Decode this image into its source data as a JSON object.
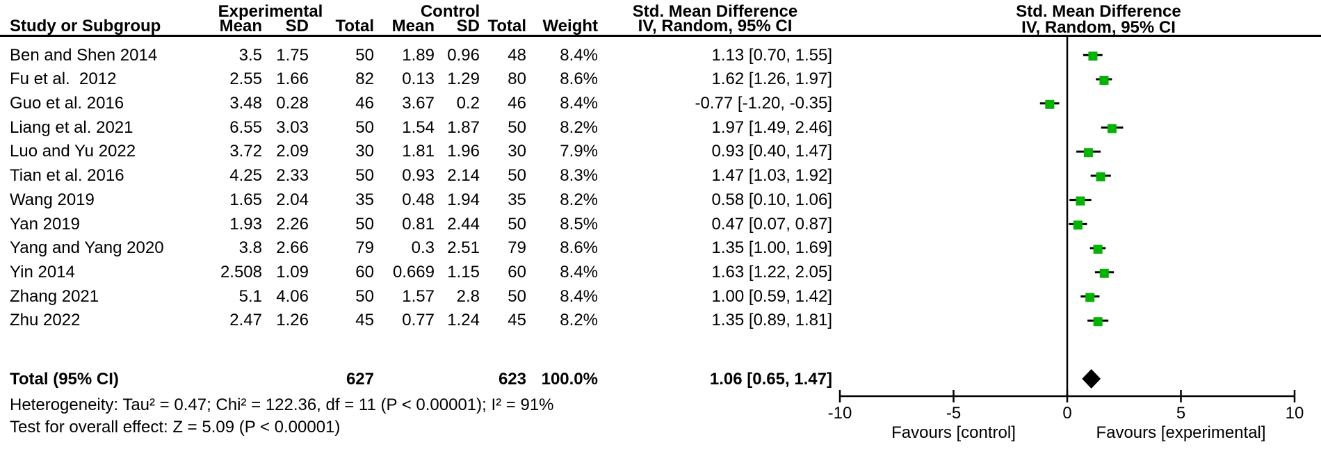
{
  "header": {
    "experimental": "Experimental",
    "control": "Control",
    "smd_left": "Std. Mean Difference",
    "smd_right": "Std. Mean Difference",
    "study": "Study or Subgroup",
    "mean_e": "Mean",
    "sd_e": "SD",
    "total_e": "Total",
    "mean_c": "Mean",
    "sd_c": "SD",
    "total_c": "Total",
    "weight": "Weight",
    "iv_left": "IV, Random, 95% CI",
    "iv_right": "IV, Random, 95% CI"
  },
  "chart_data": {
    "type": "scatter",
    "subtype": "forest-plot",
    "effect_measure": "Std. Mean Difference, IV, Random, 95% CI",
    "xlim": [
      -10,
      10
    ],
    "x_tick_values": [
      -10,
      -5,
      0,
      5,
      10
    ],
    "x_tick_labels": [
      "-10",
      "-5",
      "0",
      "5",
      "10"
    ],
    "favours_left": "Favours [control]",
    "favours_right": "Favours [experimental]",
    "marker_color": "#00B400",
    "line_color": "#000000",
    "studies": [
      {
        "name": "Ben and Shen 2014",
        "mean_e": "3.5",
        "sd_e": "1.75",
        "total_e": "50",
        "mean_c": "1.89",
        "sd_c": "0.96",
        "total_c": "48",
        "weight": "8.4%",
        "ci_text": "1.13 [0.70, 1.55]",
        "est": 1.13,
        "lo": 0.7,
        "hi": 1.55
      },
      {
        "name": "Fu et al.  2012",
        "mean_e": "2.55",
        "sd_e": "1.66",
        "total_e": "82",
        "mean_c": "0.13",
        "sd_c": "1.29",
        "total_c": "80",
        "weight": "8.6%",
        "ci_text": "1.62 [1.26, 1.97]",
        "est": 1.62,
        "lo": 1.26,
        "hi": 1.97
      },
      {
        "name": "Guo et al. 2016",
        "mean_e": "3.48",
        "sd_e": "0.28",
        "total_e": "46",
        "mean_c": "3.67",
        "sd_c": "0.2",
        "total_c": "46",
        "weight": "8.4%",
        "ci_text": "-0.77 [-1.20, -0.35]",
        "est": -0.77,
        "lo": -1.2,
        "hi": -0.35
      },
      {
        "name": "Liang et al. 2021",
        "mean_e": "6.55",
        "sd_e": "3.03",
        "total_e": "50",
        "mean_c": "1.54",
        "sd_c": "1.87",
        "total_c": "50",
        "weight": "8.2%",
        "ci_text": "1.97 [1.49, 2.46]",
        "est": 1.97,
        "lo": 1.49,
        "hi": 2.46
      },
      {
        "name": "Luo and Yu 2022",
        "mean_e": "3.72",
        "sd_e": "2.09",
        "total_e": "30",
        "mean_c": "1.81",
        "sd_c": "1.96",
        "total_c": "30",
        "weight": "7.9%",
        "ci_text": "0.93 [0.40, 1.47]",
        "est": 0.93,
        "lo": 0.4,
        "hi": 1.47
      },
      {
        "name": "Tian et al. 2016",
        "mean_e": "4.25",
        "sd_e": "2.33",
        "total_e": "50",
        "mean_c": "0.93",
        "sd_c": "2.14",
        "total_c": "50",
        "weight": "8.3%",
        "ci_text": "1.47 [1.03, 1.92]",
        "est": 1.47,
        "lo": 1.03,
        "hi": 1.92
      },
      {
        "name": "Wang 2019",
        "mean_e": "1.65",
        "sd_e": "2.04",
        "total_e": "35",
        "mean_c": "0.48",
        "sd_c": "1.94",
        "total_c": "35",
        "weight": "8.2%",
        "ci_text": "0.58 [0.10, 1.06]",
        "est": 0.58,
        "lo": 0.1,
        "hi": 1.06
      },
      {
        "name": "Yan 2019",
        "mean_e": "1.93",
        "sd_e": "2.26",
        "total_e": "50",
        "mean_c": "0.81",
        "sd_c": "2.44",
        "total_c": "50",
        "weight": "8.5%",
        "ci_text": "0.47 [0.07, 0.87]",
        "est": 0.47,
        "lo": 0.07,
        "hi": 0.87
      },
      {
        "name": "Yang and Yang 2020",
        "mean_e": "3.8",
        "sd_e": "2.66",
        "total_e": "79",
        "mean_c": "0.3",
        "sd_c": "2.51",
        "total_c": "79",
        "weight": "8.6%",
        "ci_text": "1.35 [1.00, 1.69]",
        "est": 1.35,
        "lo": 1.0,
        "hi": 1.69
      },
      {
        "name": "Yin 2014",
        "mean_e": "2.508",
        "sd_e": "1.09",
        "total_e": "60",
        "mean_c": "0.669",
        "sd_c": "1.15",
        "total_c": "60",
        "weight": "8.4%",
        "ci_text": "1.63 [1.22, 2.05]",
        "est": 1.63,
        "lo": 1.22,
        "hi": 2.05
      },
      {
        "name": "Zhang 2021",
        "mean_e": "5.1",
        "sd_e": "4.06",
        "total_e": "50",
        "mean_c": "1.57",
        "sd_c": "2.8",
        "total_c": "50",
        "weight": "8.4%",
        "ci_text": "1.00 [0.59, 1.42]",
        "est": 1.0,
        "lo": 0.59,
        "hi": 1.42
      },
      {
        "name": "Zhu 2022",
        "mean_e": "2.47",
        "sd_e": "1.26",
        "total_e": "45",
        "mean_c": "0.77",
        "sd_c": "1.24",
        "total_c": "45",
        "weight": "8.2%",
        "ci_text": "1.35 [0.89, 1.81]",
        "est": 1.35,
        "lo": 0.89,
        "hi": 1.81
      }
    ],
    "total": {
      "name": "Total (95% CI)",
      "total_e": "627",
      "total_c": "623",
      "weight": "100.0%",
      "ci_text": "1.06 [0.65, 1.47]",
      "est": 1.06,
      "lo": 0.65,
      "hi": 1.47
    }
  },
  "footer": {
    "heterogeneity": "Heterogeneity: Tau² = 0.47; Chi² = 122.36, df = 11 (P < 0.00001); I² = 91%",
    "overall_effect": "Test for overall effect: Z = 5.09 (P < 0.00001)"
  }
}
